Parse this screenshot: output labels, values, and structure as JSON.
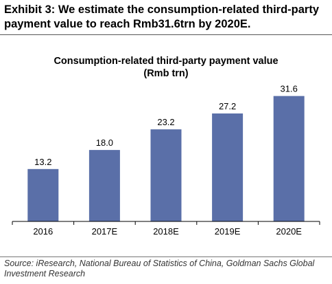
{
  "header": {
    "title": "Exhibit 3: We estimate the consumption-related third-party payment value to reach Rmb31.6trn by 2020E."
  },
  "chart_data": {
    "type": "bar",
    "title": "Consumption-related third-party payment value",
    "subtitle": "(Rmb trn)",
    "categories": [
      "2016",
      "2017E",
      "2018E",
      "2019E",
      "2020E"
    ],
    "values": [
      13.2,
      18.0,
      23.2,
      27.2,
      31.6
    ],
    "value_labels": [
      "13.2",
      "18.0",
      "23.2",
      "27.2",
      "31.6"
    ],
    "ylim": [
      0,
      35
    ],
    "grid": false,
    "legend": false,
    "bar_color": "#5a6fa8"
  },
  "footer": {
    "source": "Source: iResearch, National Bureau of Statistics of China, Goldman Sachs Global Investment Research"
  }
}
